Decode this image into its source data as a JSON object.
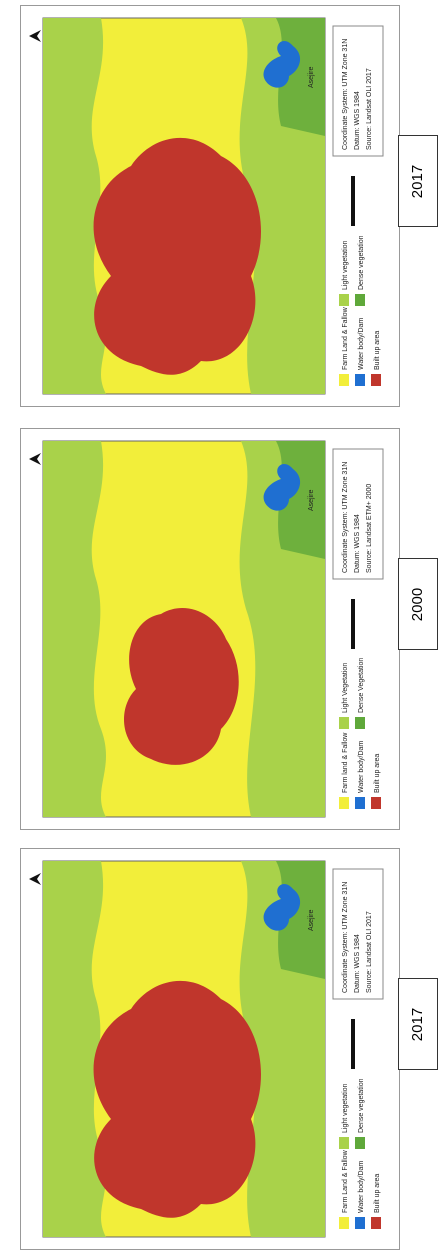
{
  "panels": [
    {
      "year": "2017",
      "legend": [
        "Farm Land & Fallow",
        "Water body/Dam",
        "Built up area",
        "Light vegetation",
        "Dense vegetation"
      ],
      "info": [
        "Coordinate System: UTM Zone 31N",
        "Datum: WGS 1984",
        "Source: Landsat OLI 2017"
      ],
      "places": [
        "Asejire"
      ]
    },
    {
      "year": "2000",
      "legend": [
        "Farm land & Fallow",
        "Water body/Dam",
        "Built up area",
        "Light Vegetation",
        "Dense Vegetation"
      ],
      "info": [
        "Coordinate System: UTM Zone 31N",
        "Datum: WGS 1984",
        "Source: Landsat ETM+ 2000"
      ],
      "places": [
        "Asejire"
      ]
    },
    {
      "year": "2017",
      "legend": [
        "Farm Land & Fallow",
        "Water body/Dam",
        "Built up area",
        "Light vegetation",
        "Dense vegetation"
      ],
      "info": [
        "Coordinate System: UTM Zone 31N",
        "Datum: WGS 1984",
        "Source: Landsat OLI 2017"
      ],
      "places": [
        "Asejire"
      ]
    }
  ]
}
